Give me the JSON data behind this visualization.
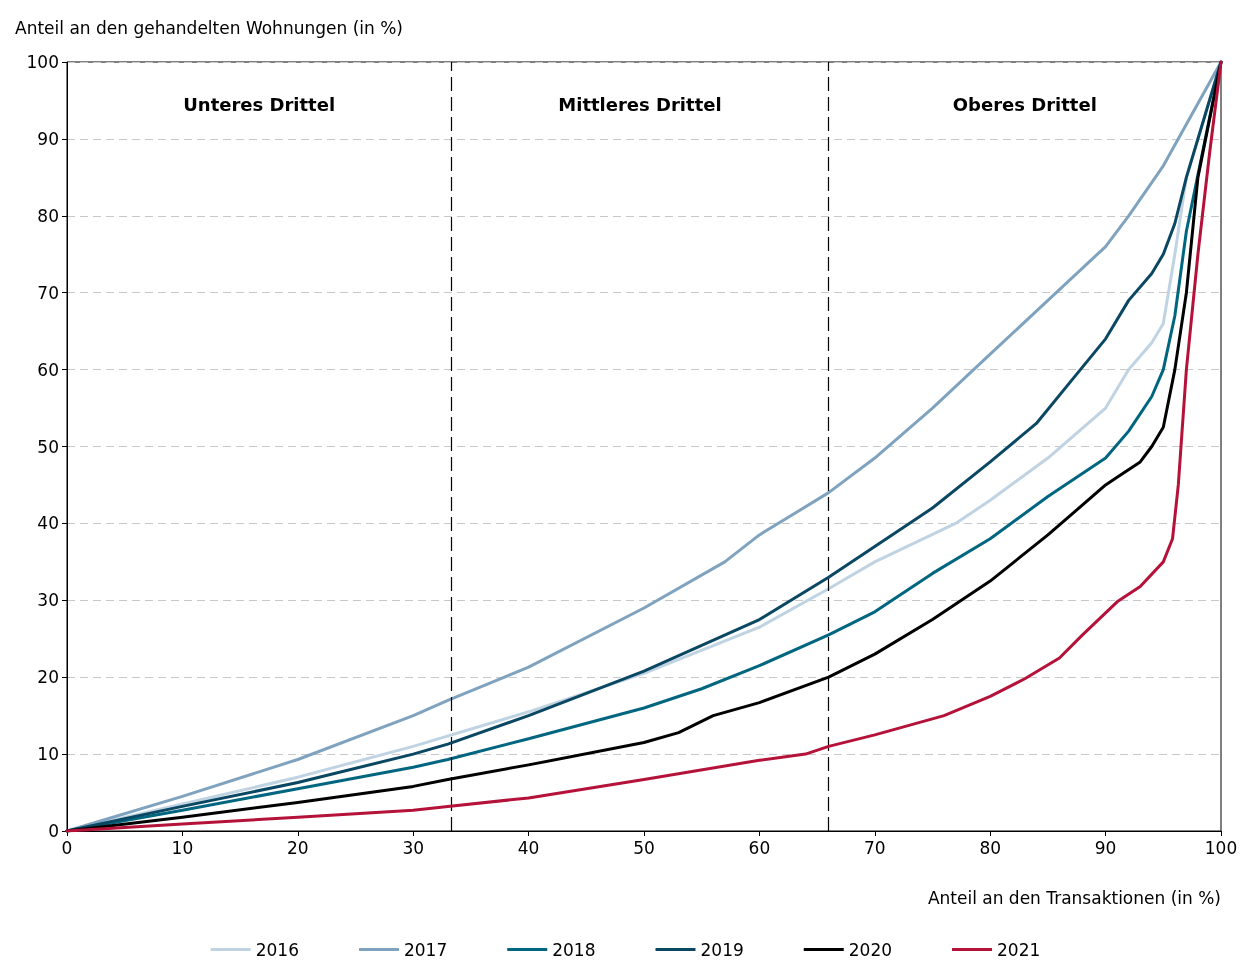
{
  "chart_data": {
    "type": "line",
    "ylabel": "Anteil an den gehandelten Wohnungen (in %)",
    "xlabel": "Anteil an den Transaktionen (in %)",
    "xlim": [
      0,
      100
    ],
    "xticks": [
      0,
      10,
      20,
      30,
      40,
      50,
      60,
      70,
      80,
      90,
      100
    ],
    "ylim": [
      0,
      100
    ],
    "yticks": [
      0,
      10,
      20,
      30,
      40,
      50,
      60,
      70,
      80,
      90,
      100
    ],
    "grid": "y",
    "legend": "bottom",
    "marker": "none",
    "line_style": "solid",
    "ref_lines": [
      {
        "axis": "x",
        "value": 33.3,
        "line_style": "dashed",
        "color": "#000000"
      },
      {
        "axis": "x",
        "value": 66,
        "line_style": "dashed",
        "color": "#000000"
      }
    ],
    "annotations": [
      "Unteres Drittel",
      "Mittleres Drittel",
      "Oberes Drittel"
    ],
    "series": [
      {
        "name": "2016",
        "color": "#c0d3e2",
        "x": [
          0,
          10,
          20,
          30,
          40,
          50,
          60,
          66,
          70,
          77,
          80,
          85,
          90,
          92,
          94,
          95,
          96,
          97,
          100
        ],
        "values": [
          0,
          3.5,
          7,
          11,
          15.5,
          20.5,
          26.5,
          31.5,
          35,
          40,
          43,
          48.5,
          55,
          60,
          63.5,
          66,
          75,
          85,
          100
        ]
      },
      {
        "name": "2017",
        "color": "#7fa3bf",
        "x": [
          0,
          10,
          20,
          30,
          33,
          40,
          50,
          57,
          60,
          66,
          70,
          75,
          80,
          85,
          90,
          92,
          95,
          100
        ],
        "values": [
          0,
          4.5,
          9.3,
          15,
          17,
          21.3,
          29,
          35,
          38.5,
          44,
          48.5,
          55,
          62,
          69,
          76,
          80,
          86.5,
          100
        ]
      },
      {
        "name": "2018",
        "color": "#00667f",
        "x": [
          0,
          10,
          20,
          30,
          33,
          40,
          50,
          55,
          60,
          66,
          70,
          75,
          80,
          85,
          90,
          92,
          94,
          95,
          96,
          97,
          100
        ],
        "values": [
          0,
          2.7,
          5.5,
          8.3,
          9.3,
          12,
          16,
          18.5,
          21.5,
          25.5,
          28.5,
          33.5,
          38,
          43.5,
          48.5,
          52,
          56.5,
          60,
          67,
          78,
          100
        ]
      },
      {
        "name": "2019",
        "color": "#0a4763",
        "x": [
          0,
          10,
          20,
          30,
          33,
          40,
          50,
          60,
          66,
          70,
          75,
          80,
          84,
          87,
          90,
          92,
          94,
          95,
          96,
          97,
          100
        ],
        "values": [
          0,
          3.2,
          6.3,
          10,
          11.3,
          15,
          20.8,
          27.5,
          33,
          37,
          42,
          48,
          53,
          58.5,
          64,
          69,
          72.5,
          75,
          79,
          85,
          100
        ]
      },
      {
        "name": "2020",
        "color": "#000000",
        "x": [
          0,
          10,
          20,
          30,
          33,
          40,
          50,
          53,
          56,
          60,
          66,
          70,
          75,
          80,
          85,
          90,
          91,
          93,
          94,
          95,
          96,
          97,
          98,
          100
        ],
        "values": [
          0,
          1.8,
          3.7,
          5.8,
          6.7,
          8.6,
          11.5,
          12.8,
          15,
          16.7,
          20,
          23,
          27.5,
          32.5,
          38.5,
          45,
          46,
          48,
          50,
          52.5,
          60,
          70,
          85,
          100
        ]
      },
      {
        "name": "2021",
        "color": "#b5123a",
        "x": [
          0,
          10,
          20,
          30,
          33,
          40,
          50,
          60,
          64,
          66,
          70,
          76,
          80,
          83,
          86,
          88,
          91,
          93,
          95,
          95.8,
          96.3,
          97,
          98,
          99,
          100
        ],
        "values": [
          0,
          0.9,
          1.8,
          2.7,
          3.2,
          4.3,
          6.7,
          9.2,
          10,
          11,
          12.5,
          15,
          17.5,
          19.8,
          22.5,
          25.5,
          29.8,
          31.8,
          35,
          38,
          45,
          60,
          75,
          88,
          100
        ]
      }
    ]
  }
}
